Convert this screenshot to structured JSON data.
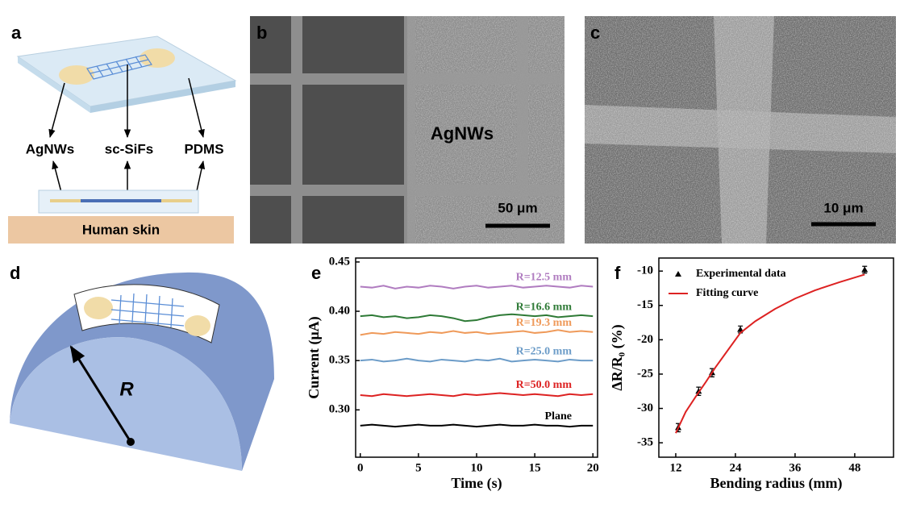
{
  "panels": {
    "a": {
      "label": "a",
      "labels": [
        "AgNWs",
        "sc-SiFs",
        "PDMS"
      ],
      "base": "Human skin"
    },
    "b": {
      "label": "b",
      "text": "AgNWs",
      "scale_bar": "50 μm"
    },
    "c": {
      "label": "c",
      "scale_bar": "10 μm"
    },
    "d": {
      "label": "d",
      "radius": "R"
    }
  },
  "chart_data": [
    {
      "type": "line",
      "panel": "e",
      "xlabel": "Time (s)",
      "ylabel": "Current (μA)",
      "xlim": [
        -0.4,
        20.4
      ],
      "xticks": [
        0,
        5,
        10,
        15,
        20
      ],
      "ylim": [
        0.252,
        0.454
      ],
      "yticks": [
        {
          "value": 0.3,
          "label": "0.30"
        },
        0.35,
        {
          "value": 0.4,
          "label": "0.40"
        },
        0.45
      ],
      "x": [
        0,
        1,
        2,
        3,
        4,
        5,
        6,
        7,
        8,
        9,
        10,
        11,
        12,
        13,
        14,
        15,
        16,
        17,
        18,
        19,
        20
      ],
      "series": [
        {
          "name": "R=12.5 mm",
          "color": "#b07cc0",
          "values": [
            0.425,
            0.424,
            0.426,
            0.423,
            0.425,
            0.424,
            0.426,
            0.425,
            0.423,
            0.425,
            0.426,
            0.424,
            0.425,
            0.426,
            0.424,
            0.425,
            0.426,
            0.425,
            0.424,
            0.426,
            0.425
          ]
        },
        {
          "name": "R=16.6 mm",
          "color": "#2e7a36",
          "values": [
            0.395,
            0.396,
            0.394,
            0.395,
            0.393,
            0.394,
            0.396,
            0.395,
            0.393,
            0.39,
            0.391,
            0.394,
            0.396,
            0.397,
            0.396,
            0.395,
            0.396,
            0.394,
            0.395,
            0.396,
            0.395
          ]
        },
        {
          "name": "R=19.3 mm",
          "color": "#ef9a5a",
          "values": [
            0.376,
            0.378,
            0.377,
            0.379,
            0.378,
            0.377,
            0.379,
            0.378,
            0.38,
            0.378,
            0.379,
            0.377,
            0.378,
            0.379,
            0.38,
            0.378,
            0.379,
            0.381,
            0.379,
            0.38,
            0.379
          ]
        },
        {
          "name": "R=25.0 mm",
          "color": "#6c9cc8",
          "values": [
            0.35,
            0.351,
            0.349,
            0.35,
            0.352,
            0.35,
            0.349,
            0.351,
            0.35,
            0.349,
            0.351,
            0.35,
            0.352,
            0.349,
            0.35,
            0.351,
            0.35,
            0.349,
            0.351,
            0.35,
            0.35
          ]
        },
        {
          "name": "R=50.0 mm",
          "color": "#dd2222",
          "values": [
            0.315,
            0.314,
            0.316,
            0.315,
            0.314,
            0.315,
            0.316,
            0.315,
            0.314,
            0.316,
            0.315,
            0.316,
            0.317,
            0.316,
            0.315,
            0.316,
            0.315,
            0.314,
            0.316,
            0.315,
            0.316
          ]
        },
        {
          "name": "Plane",
          "color": "#000000",
          "values": [
            0.284,
            0.285,
            0.284,
            0.283,
            0.284,
            0.285,
            0.284,
            0.284,
            0.285,
            0.284,
            0.283,
            0.284,
            0.285,
            0.284,
            0.284,
            0.285,
            0.284,
            0.284,
            0.283,
            0.284,
            0.284
          ]
        }
      ]
    },
    {
      "type": "scatter",
      "panel": "f",
      "xlabel": "Bending radius (mm)",
      "ylabel": "ΔR/R₀ (%)",
      "xlim": [
        8.6,
        55.8
      ],
      "xticks": [
        12,
        24,
        36,
        48
      ],
      "ylim": [
        -37.1,
        -8.1
      ],
      "yticks": [
        -35,
        -30,
        -25,
        -20,
        -15,
        -10
      ],
      "legend": "upper left",
      "series": [
        {
          "name": "Experimental data",
          "type": "scatter",
          "color": "#000000",
          "x": [
            12.5,
            16.6,
            19.3,
            25,
            50
          ],
          "values": [
            -32.8,
            -27.5,
            -24.8,
            -18.5,
            -9.8
          ],
          "errors": [
            0.6,
            0.6,
            0.6,
            0.5,
            0.5
          ]
        },
        {
          "name": "Fitting curve",
          "type": "line",
          "color": "#dd2222",
          "x": [
            12,
            14,
            16,
            18,
            20,
            22,
            25,
            28,
            32,
            36,
            40,
            45,
            50
          ],
          "values": [
            -33.6,
            -30.5,
            -28.3,
            -26.2,
            -24.0,
            -22.0,
            -19.0,
            -17.3,
            -15.5,
            -14.0,
            -12.8,
            -11.6,
            -10.5
          ]
        }
      ]
    }
  ]
}
